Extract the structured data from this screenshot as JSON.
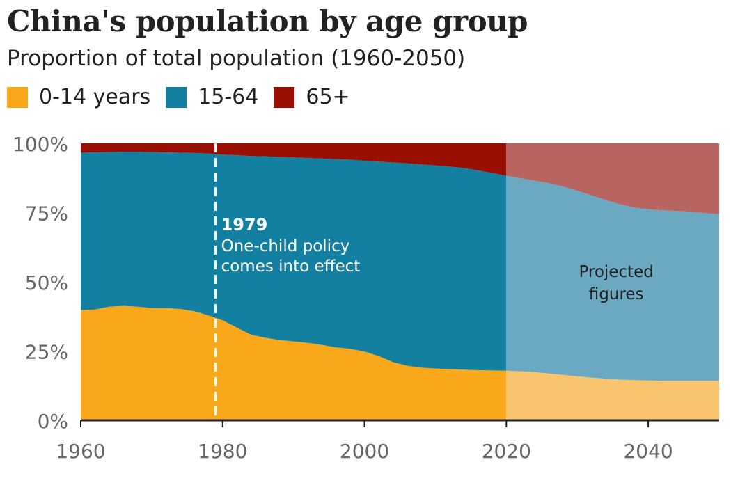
{
  "title": "China's population by age group",
  "subtitle": "Proportion of total population (1960-2050)",
  "legend": [
    {
      "label": "0-14 years",
      "color": "#f9a81b"
    },
    {
      "label": "15-64",
      "color": "#1380a1"
    },
    {
      "label": "65+",
      "color": "#990f04"
    }
  ],
  "annotation": {
    "year_label": "1979",
    "line1": "One-child policy",
    "line2": "comes into effect",
    "year": 1979
  },
  "projection": {
    "label1": "Projected",
    "label2": "figures",
    "start_year": 2020
  },
  "chart_data": {
    "type": "area",
    "stacked": true,
    "x": [
      1960,
      1962,
      1964,
      1966,
      1968,
      1970,
      1972,
      1974,
      1976,
      1978,
      1980,
      1982,
      1984,
      1986,
      1988,
      1990,
      1992,
      1994,
      1996,
      1998,
      2000,
      2002,
      2004,
      2006,
      2008,
      2010,
      2012,
      2014,
      2016,
      2018,
      2020,
      2022,
      2024,
      2026,
      2028,
      2030,
      2032,
      2034,
      2036,
      2038,
      2040,
      2042,
      2044,
      2046,
      2048,
      2050
    ],
    "series": [
      {
        "name": "0-14 years",
        "color": "#f9a81b",
        "values": [
          39.8,
          40.0,
          41.0,
          41.3,
          41.0,
          40.5,
          40.5,
          40.2,
          39.4,
          37.9,
          36.1,
          33.5,
          30.9,
          29.8,
          29.0,
          28.5,
          28.0,
          27.2,
          26.3,
          25.8,
          24.8,
          23.2,
          21.0,
          19.7,
          19.0,
          18.7,
          18.5,
          18.3,
          18.1,
          18.0,
          17.9,
          17.7,
          17.4,
          16.9,
          16.4,
          15.9,
          15.4,
          15.0,
          14.7,
          14.5,
          14.4,
          14.3,
          14.3,
          14.3,
          14.3,
          14.3
        ]
      },
      {
        "name": "15-64",
        "color": "#1380a1",
        "values": [
          56.8,
          56.7,
          55.8,
          55.6,
          55.9,
          56.3,
          56.2,
          56.4,
          57.1,
          58.4,
          59.8,
          62.2,
          64.5,
          65.5,
          66.1,
          66.4,
          66.7,
          67.3,
          68.0,
          68.3,
          68.9,
          70.2,
          72.1,
          73.1,
          73.4,
          73.3,
          73.1,
          72.8,
          72.1,
          71.3,
          70.4,
          69.7,
          69.1,
          68.7,
          68.0,
          67.0,
          65.8,
          64.5,
          63.3,
          62.3,
          61.8,
          61.5,
          61.3,
          61.0,
          60.5,
          60.1
        ]
      },
      {
        "name": "65+",
        "color": "#990f04",
        "values": [
          3.4,
          3.3,
          3.2,
          3.1,
          3.1,
          3.2,
          3.3,
          3.4,
          3.5,
          3.7,
          4.1,
          4.3,
          4.6,
          4.7,
          4.9,
          5.1,
          5.3,
          5.5,
          5.7,
          5.9,
          6.3,
          6.6,
          6.9,
          7.2,
          7.6,
          8.0,
          8.4,
          8.9,
          9.8,
          10.7,
          11.7,
          12.6,
          13.5,
          14.4,
          15.6,
          17.1,
          18.8,
          20.5,
          22.0,
          23.2,
          23.8,
          24.2,
          24.4,
          24.7,
          25.2,
          25.6
        ]
      }
    ],
    "projection_colors": [
      "#f9c46e",
      "#6ba8c1",
      "#b86461"
    ],
    "x_ticks": [
      "1960",
      "1980",
      "2000",
      "2020",
      "2040"
    ],
    "y_ticks": [
      "0%",
      "25%",
      "50%",
      "75%",
      "100%"
    ],
    "xlim": [
      1960,
      2050
    ],
    "ylim": [
      0,
      100
    ],
    "grid": false,
    "legend_position": "top-left"
  }
}
